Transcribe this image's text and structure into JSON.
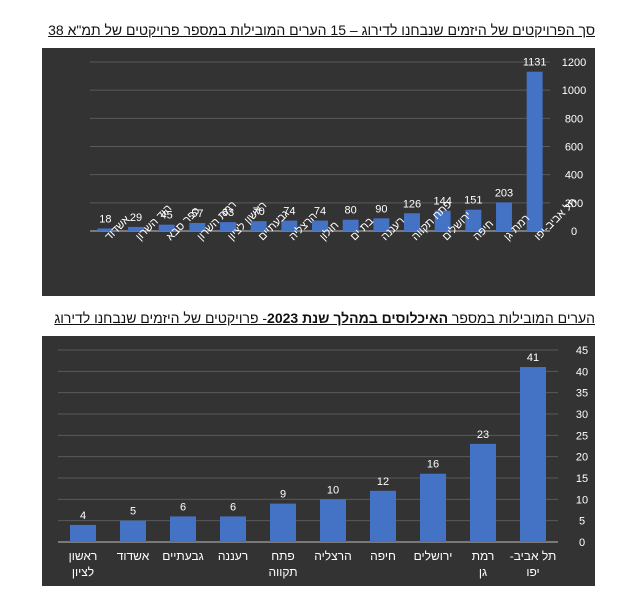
{
  "chart_data": [
    {
      "type": "bar",
      "title": "סך הפרויקטים של היזמים שנבחנו לדירוג – 15 הערים המובילות במספר פרויקטים של תמ\"א 38",
      "categories": [
        "תל אביב-יפו",
        "רמת גן",
        "חיפה",
        "ירושלים",
        "פתח תקווה",
        "רעננה",
        "בת ים",
        "חולון",
        "הרצליה",
        "גבעתיים",
        "ראשון לציון",
        "רמת השרון",
        "כפר סבא",
        "הוד השרון",
        "אשדוד"
      ],
      "values": [
        1131,
        203,
        151,
        144,
        126,
        90,
        80,
        74,
        74,
        70,
        63,
        57,
        45,
        29,
        18
      ],
      "ylim": [
        0,
        1200
      ],
      "yticks": [
        0,
        200,
        400,
        600,
        800,
        1000,
        1200
      ],
      "y_axis_side": "right",
      "grid": true,
      "data_labels": true,
      "colors": {
        "background": "#333333",
        "bar": "#4472C4",
        "text": "#ffffff",
        "grid": "#5a5a5a"
      }
    },
    {
      "type": "bar",
      "title_parts": [
        {
          "text": "הערים המובילות במספר ",
          "bold": false
        },
        {
          "text": "האיכלוסים במהלך שנת 2023",
          "bold": true
        },
        {
          "text": "- פרויקטים של היזמים שנבחנו לדירוג",
          "bold": false
        }
      ],
      "categories": [
        "תל אביב- יפו",
        "רמת גן",
        "ירושלים",
        "חיפה",
        "הרצליה",
        "פתח תקווה",
        "רעננה",
        "גבעתיים",
        "אשדוד",
        "ראשון לציון"
      ],
      "values": [
        41,
        23,
        16,
        12,
        10,
        9,
        6,
        6,
        5,
        4
      ],
      "ylim": [
        0,
        45
      ],
      "yticks": [
        0,
        5,
        10,
        15,
        20,
        25,
        30,
        35,
        40,
        45
      ],
      "y_axis_side": "right",
      "grid": true,
      "data_labels": true,
      "colors": {
        "background": "#333333",
        "bar": "#4472C4",
        "text": "#ffffff",
        "grid": "#5a5a5a"
      }
    }
  ]
}
